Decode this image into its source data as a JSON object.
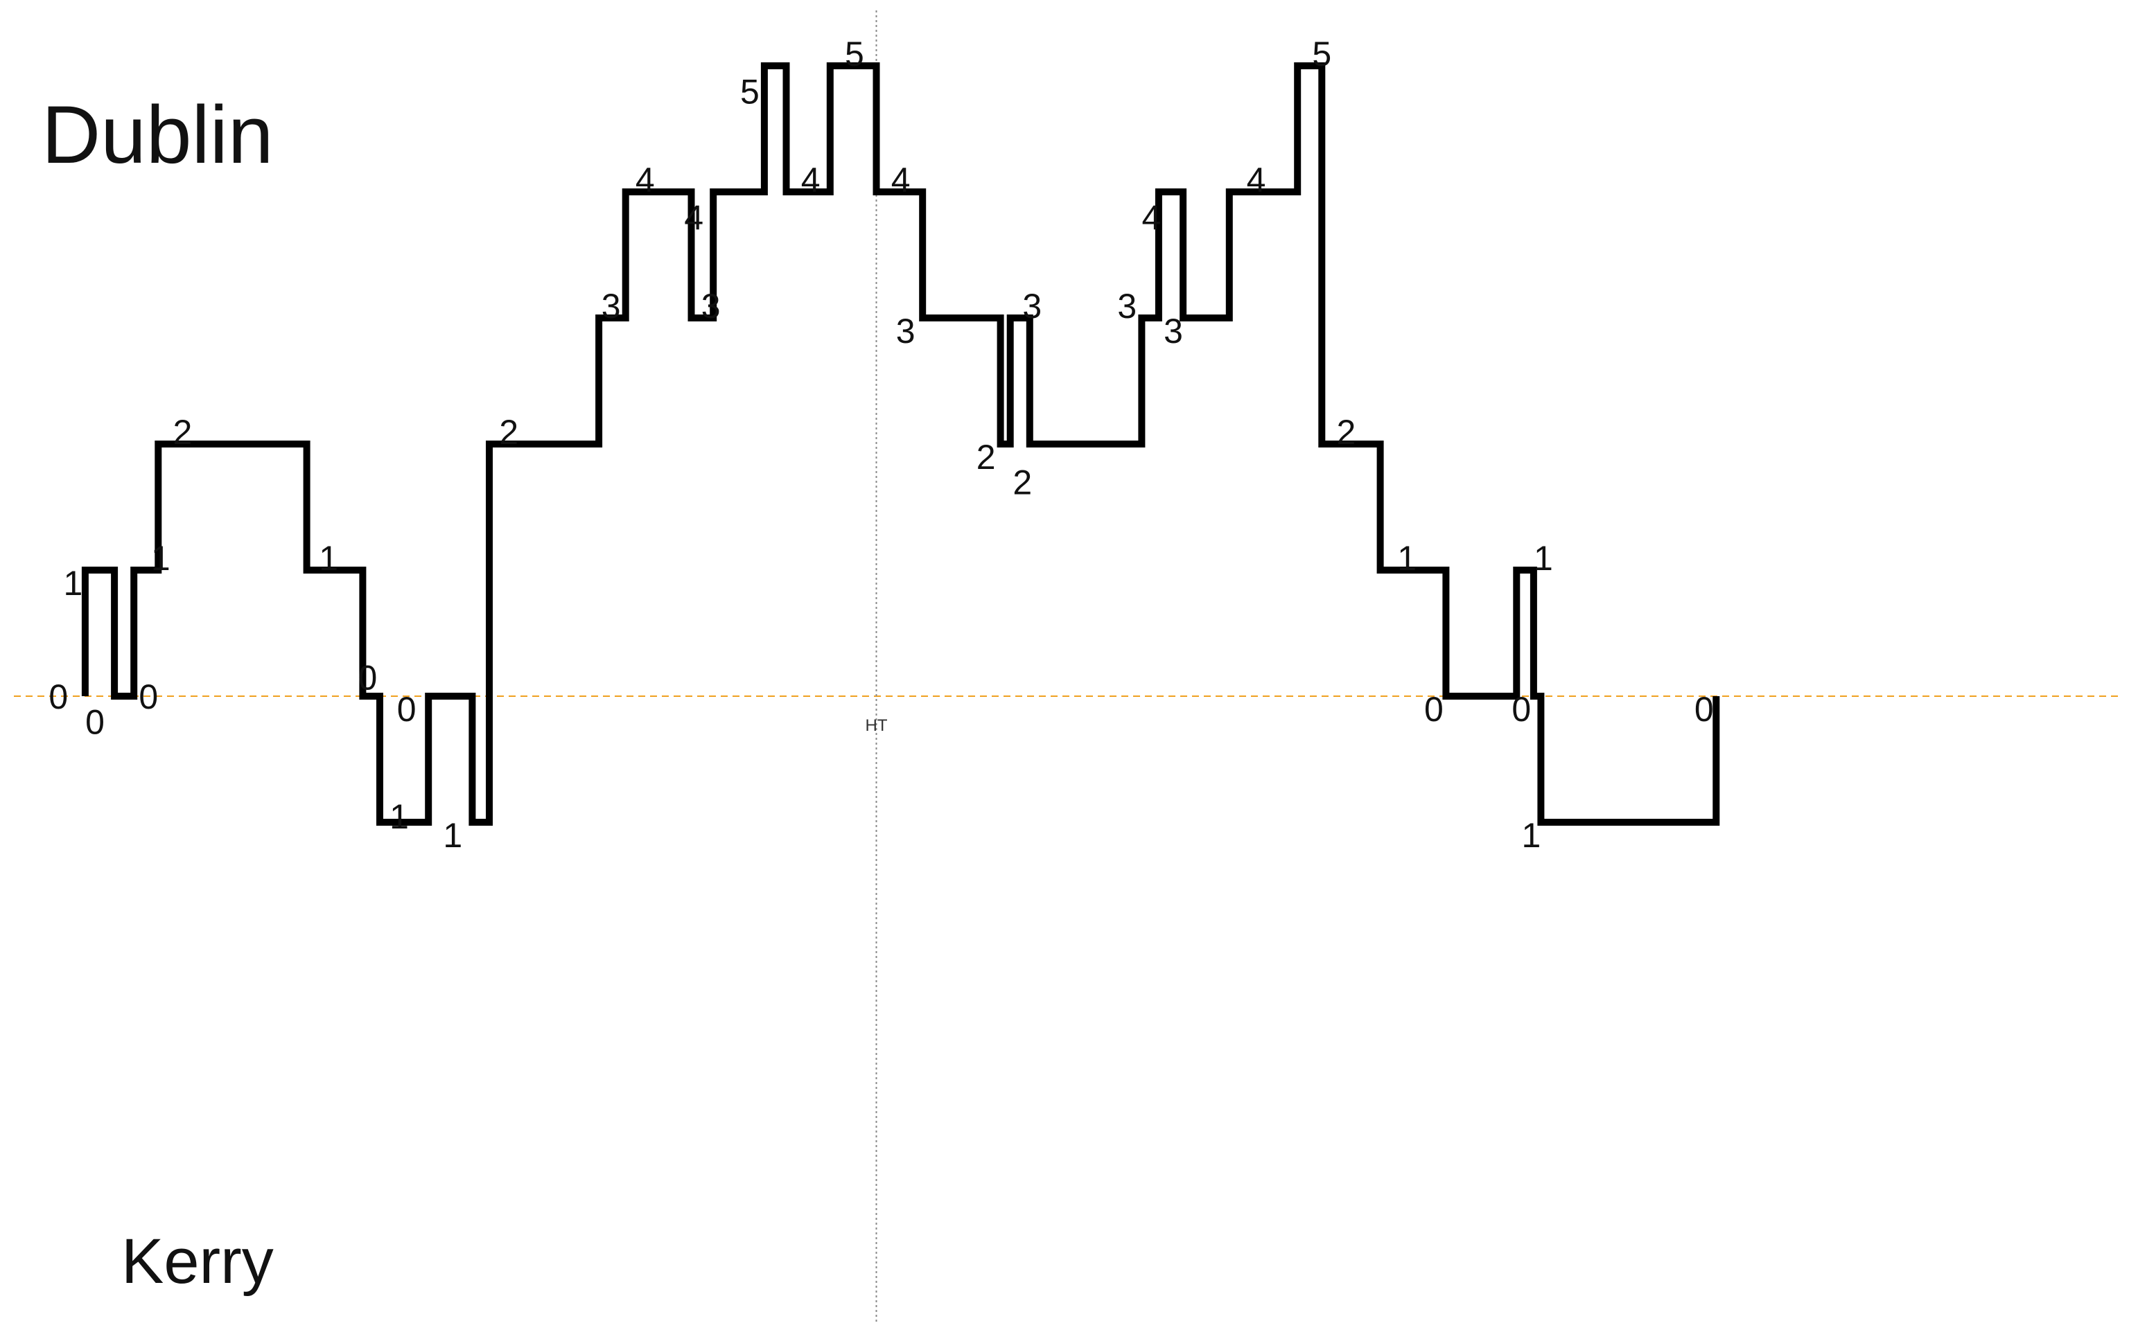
{
  "labels": {
    "top_team": "Dublin",
    "bottom_team": "Kerry",
    "halftime": "HT"
  },
  "colors": {
    "line": "#000000",
    "zero_line": "#f0a020",
    "halftime_line": "#888888"
  },
  "chart_data": {
    "type": "line",
    "step": true,
    "y_meaning": "score difference (positive = Dublin ahead, negative = Kerry ahead)",
    "xlim": [
      0,
      80
    ],
    "ylim": [
      -5,
      5
    ],
    "halftime_x": 36,
    "zero_line": true,
    "points": [
      [
        3.5,
        0
      ],
      [
        3.5,
        1
      ],
      [
        4.7,
        1
      ],
      [
        4.7,
        0
      ],
      [
        5.5,
        0
      ],
      [
        5.5,
        1
      ],
      [
        6.5,
        1
      ],
      [
        6.5,
        2
      ],
      [
        12.6,
        2
      ],
      [
        12.6,
        1
      ],
      [
        14.9,
        1
      ],
      [
        14.9,
        0
      ],
      [
        15.6,
        0
      ],
      [
        15.6,
        -1
      ],
      [
        17.6,
        -1
      ],
      [
        17.6,
        0
      ],
      [
        19.4,
        0
      ],
      [
        19.4,
        -1
      ],
      [
        20.1,
        -1
      ],
      [
        20.1,
        2
      ],
      [
        24.6,
        2
      ],
      [
        24.6,
        3
      ],
      [
        25.7,
        3
      ],
      [
        25.7,
        4
      ],
      [
        28.4,
        4
      ],
      [
        28.4,
        3
      ],
      [
        29.3,
        3
      ],
      [
        29.3,
        4
      ],
      [
        31.4,
        4
      ],
      [
        31.4,
        5
      ],
      [
        32.3,
        5
      ],
      [
        32.3,
        4
      ],
      [
        34.1,
        4
      ],
      [
        34.1,
        5
      ],
      [
        36,
        5
      ],
      [
        36,
        4
      ],
      [
        37.9,
        4
      ],
      [
        37.9,
        3
      ],
      [
        41.1,
        3
      ],
      [
        41.1,
        2
      ],
      [
        41.5,
        2
      ],
      [
        41.5,
        3
      ],
      [
        42.3,
        3
      ],
      [
        42.3,
        2
      ],
      [
        46.9,
        2
      ],
      [
        46.9,
        3
      ],
      [
        47.6,
        3
      ],
      [
        47.6,
        4
      ],
      [
        48.6,
        4
      ],
      [
        48.6,
        3
      ],
      [
        50.5,
        3
      ],
      [
        50.5,
        4
      ],
      [
        53.3,
        4
      ],
      [
        53.3,
        5
      ],
      [
        54.3,
        5
      ],
      [
        54.3,
        2
      ],
      [
        56.7,
        2
      ],
      [
        56.7,
        1
      ],
      [
        59.4,
        1
      ],
      [
        59.4,
        0
      ],
      [
        62.3,
        0
      ],
      [
        62.3,
        1
      ],
      [
        63,
        1
      ],
      [
        63,
        0
      ],
      [
        63.3,
        0
      ],
      [
        63.3,
        -1
      ],
      [
        70.5,
        -1
      ],
      [
        70.5,
        0
      ]
    ],
    "step_labels": [
      {
        "x": 2.4,
        "y": 0,
        "text": "0"
      },
      {
        "x": 3.9,
        "y": -0.2,
        "text": "0"
      },
      {
        "x": 3.0,
        "y": 0.9,
        "text": "1"
      },
      {
        "x": 6.1,
        "y": 0,
        "text": "0"
      },
      {
        "x": 6.6,
        "y": 1.1,
        "text": "1"
      },
      {
        "x": 7.5,
        "y": 2.1,
        "text": "2"
      },
      {
        "x": 13.5,
        "y": 1.1,
        "text": "1"
      },
      {
        "x": 15.1,
        "y": 0.15,
        "text": "0"
      },
      {
        "x": 16.7,
        "y": -0.1,
        "text": "0"
      },
      {
        "x": 16.4,
        "y": -0.95,
        "text": "1"
      },
      {
        "x": 18.6,
        "y": -1.1,
        "text": "1"
      },
      {
        "x": 20.9,
        "y": 2.1,
        "text": "2"
      },
      {
        "x": 25.1,
        "y": 3.1,
        "text": "3"
      },
      {
        "x": 26.5,
        "y": 4.1,
        "text": "4"
      },
      {
        "x": 28.5,
        "y": 3.8,
        "text": "4"
      },
      {
        "x": 29.2,
        "y": 3.1,
        "text": "3"
      },
      {
        "x": 30.8,
        "y": 4.8,
        "text": "5"
      },
      {
        "x": 33.3,
        "y": 4.1,
        "text": "4"
      },
      {
        "x": 35.1,
        "y": 5.1,
        "text": "5"
      },
      {
        "x": 37.0,
        "y": 4.1,
        "text": "4"
      },
      {
        "x": 37.2,
        "y": 2.9,
        "text": "3"
      },
      {
        "x": 40.5,
        "y": 1.9,
        "text": "2"
      },
      {
        "x": 42.4,
        "y": 3.1,
        "text": "3"
      },
      {
        "x": 42.0,
        "y": 1.7,
        "text": "2"
      },
      {
        "x": 46.3,
        "y": 3.1,
        "text": "3"
      },
      {
        "x": 47.3,
        "y": 3.8,
        "text": "4"
      },
      {
        "x": 48.2,
        "y": 2.9,
        "text": "3"
      },
      {
        "x": 51.6,
        "y": 4.1,
        "text": "4"
      },
      {
        "x": 54.3,
        "y": 5.1,
        "text": "5"
      },
      {
        "x": 55.3,
        "y": 2.1,
        "text": "2"
      },
      {
        "x": 57.8,
        "y": 1.1,
        "text": "1"
      },
      {
        "x": 58.9,
        "y": -0.1,
        "text": "0"
      },
      {
        "x": 62.5,
        "y": -0.1,
        "text": "0"
      },
      {
        "x": 63.4,
        "y": 1.1,
        "text": "1"
      },
      {
        "x": 62.9,
        "y": -1.1,
        "text": "1"
      },
      {
        "x": 70.0,
        "y": -0.1,
        "text": "0"
      }
    ]
  }
}
